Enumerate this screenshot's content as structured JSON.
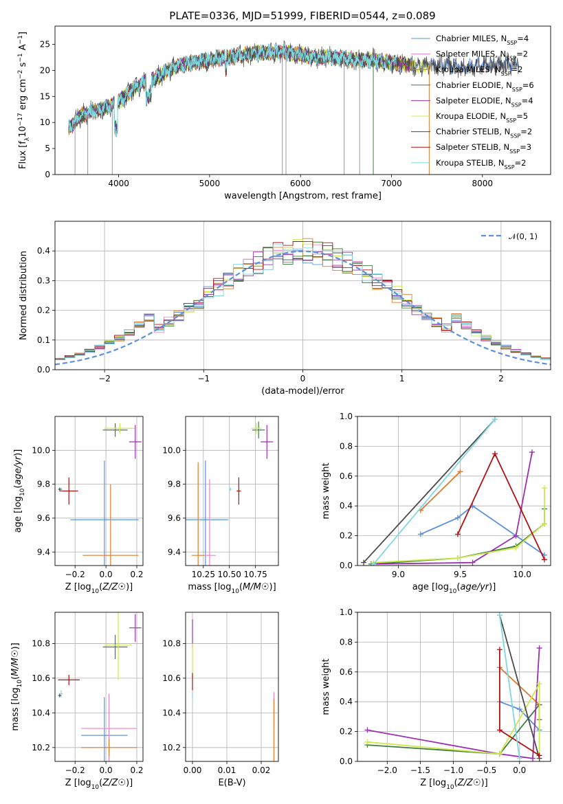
{
  "colors": {
    "Chabrier MILES": "#5b8fdd",
    "Salpeter MILES": "#ee82c8",
    "Kroupa MILES": "#e07a2a",
    "Chabrier ELODIE": "#3e7d3e",
    "Salpeter ELODIE": "#9a2fb0",
    "Kroupa ELODIE": "#cde84a",
    "Chabrier STELIB": "#4a4a4a",
    "Salpeter STELIB": "#b01010",
    "Kroupa STELIB": "#7dd8e0",
    "normal": "#5b8fdd",
    "grid": "#b0b0b0"
  },
  "chart_data": [
    {
      "id": "spectrum",
      "type": "line",
      "title": "PLATE=0336, MJD=51999, FIBERID=0544, z=0.089",
      "xlabel": "wavelength [Angstrom, rest frame]",
      "ylabel": "Flux [f_λ 10⁻¹⁷ erg cm⁻² s⁻¹ A⁻¹]",
      "xlim": [
        3300,
        8750
      ],
      "ylim": [
        0,
        28.5
      ],
      "xticks": [
        "4000",
        "5000",
        "6000",
        "7000",
        "8000"
      ],
      "yticks": [
        "0",
        "5",
        "10",
        "15",
        "20",
        "25"
      ],
      "grid": false,
      "legend": "right",
      "series": [
        {
          "name": "Chabrier MILES, N_SSP=4"
        },
        {
          "name": "Salpeter MILES, N_SSP=2"
        },
        {
          "name": "Kroupa MILES, N_SSP=2"
        },
        {
          "name": "Chabrier ELODIE, N_SSP=6"
        },
        {
          "name": "Salpeter ELODIE, N_SSP=4"
        },
        {
          "name": "Kroupa ELODIE, N_SSP=5"
        },
        {
          "name": "Chabrier STELIB, N_SSP=2"
        },
        {
          "name": "Salpeter STELIB, N_SSP=3"
        },
        {
          "name": "Kroupa STELIB, N_SSP=2"
        }
      ],
      "continuum": {
        "x": [
          3450,
          3600,
          3800,
          3900,
          4000,
          4100,
          4200,
          4400,
          4600,
          4800,
          5000,
          5200,
          5400,
          5600,
          5800,
          6000,
          6200,
          6400,
          6600,
          6800,
          7000,
          7200,
          7400,
          7600,
          7800,
          8000,
          8200,
          8400
        ],
        "y": [
          9,
          11.5,
          12.5,
          13,
          14,
          15.5,
          17,
          18.5,
          20.5,
          21.5,
          22,
          22.5,
          23,
          23.5,
          23.5,
          23,
          22.5,
          22.5,
          22,
          22,
          21.5,
          21,
          21,
          21,
          20.5,
          21,
          21,
          21.5
        ]
      },
      "spikes": [
        {
          "x": 3520,
          "y": 0
        },
        {
          "x": 3660,
          "y": 0
        },
        {
          "x": 3930,
          "y": 0
        },
        {
          "x": 5800,
          "y": 0
        },
        {
          "x": 5840,
          "y": 0
        },
        {
          "x": 6480,
          "y": 0
        },
        {
          "x": 6650,
          "y": 0
        },
        {
          "x": 6800,
          "y": 0
        },
        {
          "x": 7415,
          "y": 0
        }
      ]
    },
    {
      "id": "residuals",
      "type": "line",
      "xlabel": "(data-model)/error",
      "ylabel": "Normed distribution",
      "xlim": [
        -2.5,
        2.5
      ],
      "ylim": [
        0,
        0.5
      ],
      "xticks": [
        "−2",
        "−1",
        "0",
        "1",
        "2"
      ],
      "yticks": [
        "0.0",
        "0.1",
        "0.2",
        "0.3",
        "0.4"
      ],
      "grid": true,
      "legend": "top-right",
      "legend_label": "𝒩(0, 1)",
      "bin_width": 0.1
    },
    {
      "id": "age-vs-Z",
      "type": "scatter",
      "xlabel": "Z [log₁₀(Z/Z☉)]",
      "ylabel": "age  [log₁₀(age/yr)]",
      "xlim": [
        -0.33,
        0.24
      ],
      "ylim": [
        9.32,
        10.2
      ],
      "xticks": [
        "−0.2",
        "0.0",
        "0.2"
      ],
      "yticks": [
        "9.4",
        "9.6",
        "9.8",
        "10.0"
      ],
      "grid": true,
      "points": [
        {
          "series": "Chabrier MILES",
          "x": -0.01,
          "y": 9.59,
          "xerr": 0.22,
          "yerr": 0.35
        },
        {
          "series": "Kroupa MILES",
          "x": 0.03,
          "y": 9.38,
          "xerr": 0.18,
          "yerr": 0.42
        },
        {
          "series": "Chabrier ELODIE",
          "x": 0.06,
          "y": 10.12,
          "xerr": 0.08,
          "yerr": 0.04
        },
        {
          "series": "Kroupa ELODIE",
          "x": 0.09,
          "y": 10.13,
          "xerr": 0.1,
          "yerr": 0.03
        },
        {
          "series": "Salpeter ELODIE",
          "x": 0.19,
          "y": 10.05,
          "xerr": 0.04,
          "yerr": 0.1
        },
        {
          "series": "Salpeter STELIB",
          "x": -0.24,
          "y": 9.76,
          "xerr": 0.06,
          "yerr": 0.08
        },
        {
          "series": "Kroupa STELIB",
          "x": -0.29,
          "y": 9.77,
          "xerr": 0.01,
          "yerr": 0.01
        },
        {
          "series": "Chabrier STELIB",
          "x": -0.3,
          "y": 9.77,
          "xerr": 0.01,
          "yerr": 0.01
        }
      ]
    },
    {
      "id": "age-vs-mass",
      "type": "scatter",
      "xlabel": "mass [log₁₀(M/M☉)]",
      "ylabel": "",
      "xlim": [
        10.08,
        10.97
      ],
      "ylim": [
        9.32,
        10.2
      ],
      "xticks": [
        "10.25",
        "10.50",
        "10.75"
      ],
      "yticks": [
        "9.4",
        "9.6",
        "9.8",
        "10.0"
      ],
      "grid": true,
      "points": [
        {
          "series": "Chabrier MILES",
          "x": 10.27,
          "y": 9.59,
          "xerr": 0.22,
          "yerr": 0.35
        },
        {
          "series": "Salpeter MILES",
          "x": 10.31,
          "y": 9.38,
          "xerr": 0.06,
          "yerr": 0.45
        },
        {
          "series": "Kroupa MILES",
          "x": 10.2,
          "y": 9.38,
          "xerr": 0.06,
          "yerr": 0.55
        },
        {
          "series": "Chabrier ELODIE",
          "x": 10.78,
          "y": 10.12,
          "xerr": 0.06,
          "yerr": 0.05
        },
        {
          "series": "Kroupa ELODIE",
          "x": 10.76,
          "y": 10.13,
          "xerr": 0.05,
          "yerr": 0.03
        },
        {
          "series": "Salpeter ELODIE",
          "x": 10.86,
          "y": 10.05,
          "xerr": 0.06,
          "yerr": 0.1
        },
        {
          "series": "Salpeter STELIB",
          "x": 10.59,
          "y": 9.76,
          "xerr": 0.02,
          "yerr": 0.08
        },
        {
          "series": "Kroupa STELIB",
          "x": 10.51,
          "y": 9.77,
          "xerr": 0.01,
          "yerr": 0.01
        }
      ]
    },
    {
      "id": "mass-weight-vs-age",
      "type": "line",
      "xlabel": "age  [log₁₀(age/yr)]",
      "ylabel": "mass weight",
      "xlim": [
        8.67,
        10.23
      ],
      "ylim": [
        0,
        1
      ],
      "xticks": [
        "9.0",
        "9.5",
        "10.0"
      ],
      "yticks": [
        "0.0",
        "0.2",
        "0.4",
        "0.6",
        "0.8",
        "1.0"
      ],
      "grid": true,
      "series": [
        {
          "series": "Chabrier MILES",
          "x": [
            9.18,
            9.48,
            9.6,
            9.95,
            10.18
          ],
          "y": [
            0.21,
            0.32,
            0.4,
            0.2,
            0.07
          ]
        },
        {
          "series": "Kroupa MILES",
          "x": [
            9.18,
            9.5
          ],
          "y": [
            0.37,
            0.63
          ]
        },
        {
          "series": "Chabrier ELODIE",
          "x": [
            8.78,
            9.48,
            9.95,
            10.18,
            10.18
          ],
          "y": [
            0.01,
            0.05,
            0.13,
            0.28,
            0.38
          ]
        },
        {
          "series": "Salpeter ELODIE",
          "x": [
            8.8,
            9.6,
            9.95,
            10.08
          ],
          "y": [
            0.01,
            0.02,
            0.2,
            0.76
          ]
        },
        {
          "series": "Kroupa ELODIE",
          "x": [
            8.8,
            9.48,
            9.95,
            10.18,
            10.18
          ],
          "y": [
            0.02,
            0.05,
            0.12,
            0.28,
            0.52
          ]
        },
        {
          "series": "Chabrier STELIB",
          "x": [
            8.72,
            9.78
          ],
          "y": [
            0.02,
            0.98
          ]
        },
        {
          "series": "Salpeter STELIB",
          "x": [
            9.48,
            9.78,
            10.18
          ],
          "y": [
            0.21,
            0.75,
            0.04
          ]
        },
        {
          "series": "Kroupa STELIB",
          "x": [
            8.8,
            9.78
          ],
          "y": [
            0.01,
            0.98
          ]
        }
      ]
    },
    {
      "id": "mass-vs-Z",
      "type": "scatter",
      "xlabel": "Z [log₁₀(Z/Z☉)]",
      "ylabel": "mass [log₁₀(M/M☉)]",
      "xlim": [
        -0.33,
        0.24
      ],
      "ylim": [
        10.12,
        10.98
      ],
      "xticks": [
        "−0.2",
        "0.0",
        "0.2"
      ],
      "yticks": [
        "10.2",
        "10.4",
        "10.6",
        "10.8"
      ],
      "grid": true,
      "points": [
        {
          "series": "Chabrier MILES",
          "x": -0.01,
          "y": 10.27,
          "xerr": 0.15,
          "yerr": 0.22
        },
        {
          "series": "Salpeter MILES",
          "x": 0.02,
          "y": 10.31,
          "xerr": 0.18,
          "yerr": 0.2
        },
        {
          "series": "Kroupa MILES",
          "x": 0.02,
          "y": 10.2,
          "xerr": 0.18,
          "yerr": 0.05
        },
        {
          "series": "Chabrier ELODIE",
          "x": 0.06,
          "y": 10.78,
          "xerr": 0.08,
          "yerr": 0.07
        },
        {
          "series": "Kroupa ELODIE",
          "x": 0.08,
          "y": 10.79,
          "xerr": 0.09,
          "yerr": 0.2
        },
        {
          "series": "Salpeter ELODIE",
          "x": 0.19,
          "y": 10.89,
          "xerr": 0.04,
          "yerr": 0.08
        },
        {
          "series": "Salpeter STELIB",
          "x": -0.24,
          "y": 10.59,
          "xerr": 0.07,
          "yerr": 0.03
        },
        {
          "series": "Kroupa STELIB",
          "x": -0.29,
          "y": 10.51,
          "xerr": 0.01,
          "yerr": 0.02
        },
        {
          "series": "Chabrier STELIB",
          "x": -0.3,
          "y": 10.5,
          "xerr": 0.01,
          "yerr": 0.01
        }
      ]
    },
    {
      "id": "mass-vs-EBV",
      "type": "scatter",
      "xlabel": "E(B-V)",
      "ylabel": "",
      "xlim": [
        -0.002,
        0.025
      ],
      "ylim": [
        10.12,
        10.98
      ],
      "xticks": [
        "0.00",
        "0.01",
        "0.02"
      ],
      "yticks": [
        "10.2",
        "10.4",
        "10.6",
        "10.8"
      ],
      "grid": true,
      "points": [
        {
          "series": "Salpeter ELODIE",
          "x": 0.0,
          "y": 10.86,
          "xerr": 0,
          "yerr": 0.08
        },
        {
          "series": "Kroupa ELODIE",
          "x": 0.0,
          "y": 10.7,
          "xerr": 0,
          "yerr": 0.1
        },
        {
          "series": "Salpeter STELIB",
          "x": 0.0,
          "y": 10.58,
          "xerr": 0,
          "yerr": 0.05
        },
        {
          "series": "Kroupa STELIB",
          "x": 0.0,
          "y": 10.5,
          "xerr": 0,
          "yerr": 0.02
        },
        {
          "series": "Salpeter MILES",
          "x": 0.0237,
          "y": 10.42,
          "xerr": 0,
          "yerr": 0.1
        },
        {
          "series": "Kroupa MILES",
          "x": 0.0237,
          "y": 10.3,
          "xerr": 0,
          "yerr": 0.18
        }
      ]
    },
    {
      "id": "mass-weight-vs-Z",
      "type": "line",
      "xlabel": "Z [log₁₀(Z/Z☉)]",
      "ylabel": "mass weight",
      "xlim": [
        -2.45,
        0.47
      ],
      "ylim": [
        0,
        1
      ],
      "xticks": [
        "−2.0",
        "−1.5",
        "−1.0",
        "−0.5",
        "0.0"
      ],
      "yticks": [
        "0.0",
        "0.2",
        "0.4",
        "0.6",
        "0.8",
        "1.0"
      ],
      "grid": true,
      "series": [
        {
          "series": "Chabrier MILES",
          "x": [
            -0.3,
            0.0,
            0.3
          ],
          "y": [
            0.4,
            0.35,
            0.21
          ]
        },
        {
          "series": "Kroupa MILES",
          "x": [
            -0.3,
            0.3
          ],
          "y": [
            0.63,
            0.38
          ]
        },
        {
          "series": "Chabrier ELODIE",
          "x": [
            -2.3,
            -0.3,
            0.3,
            0.3
          ],
          "y": [
            0.11,
            0.05,
            0.38,
            0.28
          ]
        },
        {
          "series": "Salpeter ELODIE",
          "x": [
            -2.3,
            -0.3,
            0.2,
            0.3
          ],
          "y": [
            0.21,
            0.05,
            0.02,
            0.76
          ]
        },
        {
          "series": "Kroupa ELODIE",
          "x": [
            -2.3,
            -0.3,
            0.3,
            0.3
          ],
          "y": [
            0.13,
            0.05,
            0.52,
            0.02
          ]
        },
        {
          "series": "Chabrier STELIB",
          "x": [
            -0.3,
            0.3
          ],
          "y": [
            0.98,
            0.02
          ]
        },
        {
          "series": "Salpeter STELIB",
          "x": [
            -0.3,
            -0.3,
            0.3
          ],
          "y": [
            0.75,
            0.21,
            0.04
          ]
        },
        {
          "series": "Kroupa STELIB",
          "x": [
            -0.3,
            0.0
          ],
          "y": [
            0.98,
            0.02
          ]
        }
      ]
    }
  ]
}
